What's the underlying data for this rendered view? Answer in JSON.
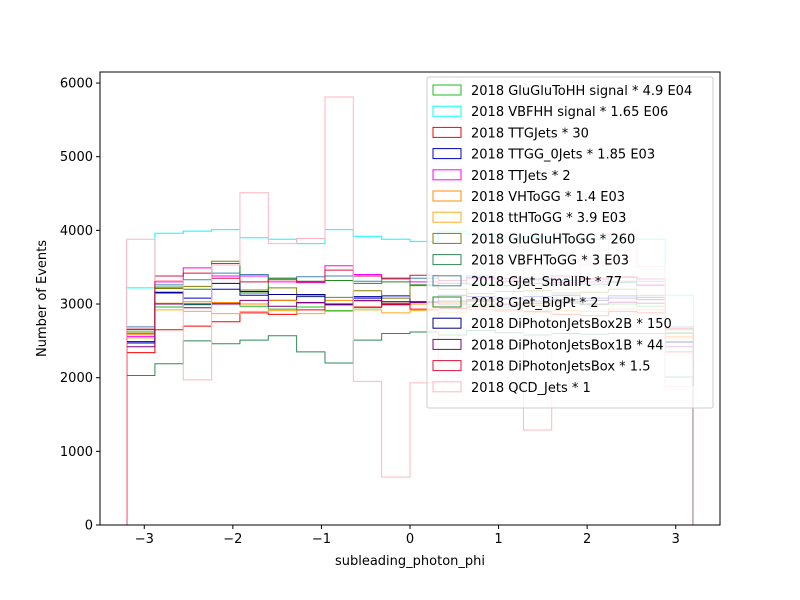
{
  "chart_data": {
    "type": "step-histogram",
    "title": "",
    "xlabel": "subleading_photon_phi",
    "ylabel": "Number of Events",
    "xlim": [
      -3.5,
      3.5
    ],
    "ylim": [
      0,
      6150
    ],
    "xticks": [
      -3,
      -2,
      -1,
      0,
      1,
      2,
      3
    ],
    "xtick_labels": [
      "−3",
      "−2",
      "−1",
      "0",
      "1",
      "2",
      "3"
    ],
    "yticks": [
      0,
      1000,
      2000,
      3000,
      4000,
      5000,
      6000
    ],
    "ytick_labels": [
      "0",
      "1000",
      "2000",
      "3000",
      "4000",
      "5000",
      "6000"
    ],
    "grid": false,
    "legend_position": "top-right",
    "bin_edges": [
      -3.2,
      -2.88,
      -2.56,
      -2.24,
      -1.92,
      -1.6,
      -1.28,
      -0.96,
      -0.64,
      -0.32,
      0.0,
      0.32,
      0.64,
      0.96,
      1.28,
      1.6,
      1.92,
      2.24,
      2.56,
      2.88,
      3.2
    ],
    "series": [
      {
        "name": "2018 GluGluToHH signal * 4.9 E04",
        "color": "#22bb22",
        "values": [
          2600,
          2960,
          2990,
          3010,
          2970,
          2930,
          2960,
          2910,
          2950,
          2990,
          3000,
          3020,
          2990,
          2960,
          2980,
          3010,
          2990,
          3000,
          2970,
          2610
        ]
      },
      {
        "name": "2018 VBFHH signal * 1.65 E06",
        "color": "#00ffff",
        "values": [
          3220,
          3960,
          3990,
          4010,
          3900,
          3880,
          3820,
          4010,
          3920,
          3880,
          3850,
          3990,
          3950,
          3900,
          3920,
          3900,
          3880,
          3880,
          3880,
          3120
        ]
      },
      {
        "name": "2018 TTGJets * 30",
        "color": "#ff0000",
        "values": [
          2340,
          2650,
          2700,
          2760,
          2880,
          2860,
          2920,
          3000,
          2960,
          2990,
          2930,
          2940,
          2960,
          2920,
          2900,
          2860,
          2840,
          2900,
          2880,
          2350
        ]
      },
      {
        "name": "2018 TTGG_0Jets * 1.85 E03",
        "color": "#0000cc",
        "values": [
          2470,
          3150,
          3080,
          3200,
          3120,
          3050,
          3100,
          2990,
          3080,
          3110,
          3020,
          3120,
          3100,
          3080,
          3100,
          3120,
          3080,
          3110,
          3090,
          2480
        ]
      },
      {
        "name": "2018 TTJets * 2",
        "color": "#ff00ff",
        "values": [
          2560,
          3300,
          3490,
          3380,
          3380,
          3300,
          3290,
          3520,
          3400,
          3350,
          3300,
          3280,
          3350,
          3310,
          3330,
          3290,
          3300,
          3310,
          3260,
          2560
        ]
      },
      {
        "name": "2018 VHToGG * 1.4 E03",
        "color": "#ff8c00",
        "values": [
          2590,
          3010,
          3030,
          3020,
          3000,
          3050,
          3010,
          3050,
          3040,
          3010,
          3000,
          3020,
          3050,
          3010,
          3000,
          3030,
          3000,
          3040,
          3010,
          2560
        ]
      },
      {
        "name": "2018 ttHToGG * 3.9 E03",
        "color": "#ffaa22",
        "values": [
          2540,
          2920,
          2900,
          2870,
          2900,
          2910,
          2870,
          2900,
          2920,
          2880,
          2910,
          2890,
          2930,
          2900,
          2880,
          2910,
          2900,
          2930,
          2920,
          2540
        ]
      },
      {
        "name": "2018 GluGluHToGG * 260",
        "color": "#808000",
        "values": [
          2620,
          3210,
          3240,
          3580,
          3190,
          3220,
          3110,
          3090,
          3180,
          3080,
          3250,
          3200,
          3140,
          3170,
          3180,
          3150,
          3160,
          3200,
          3120,
          2600
        ]
      },
      {
        "name": "2018 VBFHToGG * 3 E03",
        "color": "#2e8b57",
        "values": [
          2030,
          2190,
          2500,
          2460,
          2510,
          2570,
          2350,
          2200,
          2510,
          2600,
          2620,
          2580,
          2640,
          2610,
          2580,
          2600,
          2590,
          2600,
          2600,
          2010
        ]
      },
      {
        "name": "2018 GJet_SmallPt * 77",
        "color": "#4682b4",
        "values": [
          2690,
          3260,
          3330,
          3420,
          3400,
          3350,
          3370,
          3380,
          3310,
          3340,
          3350,
          3320,
          3380,
          3300,
          3350,
          3320,
          3330,
          3360,
          3310,
          2690
        ]
      },
      {
        "name": "2018 GJet_BigPt * 2",
        "color": "#228b22",
        "values": [
          2650,
          3230,
          3200,
          3550,
          3150,
          3350,
          3310,
          3320,
          3280,
          3300,
          3260,
          3280,
          3270,
          3250,
          3280,
          3260,
          3270,
          3290,
          3250,
          2650
        ]
      },
      {
        "name": "2018 DiPhotonJetsBox2B * 150",
        "color": "#00008b",
        "values": [
          2490,
          3160,
          3000,
          3280,
          3170,
          3130,
          3130,
          3000,
          3100,
          3030,
          3030,
          3040,
          3060,
          3070,
          3040,
          3060,
          3050,
          3080,
          3060,
          2490
        ]
      },
      {
        "name": "2018 DiPhotonJetsBox1B * 44",
        "color": "#800080",
        "values": [
          2420,
          3000,
          2950,
          3000,
          3050,
          2970,
          3020,
          2990,
          3050,
          3000,
          3020,
          3000,
          3040,
          2990,
          3010,
          3030,
          3000,
          3020,
          3010,
          2420
        ]
      },
      {
        "name": "2018 DiPhotonJetsBox * 1.5",
        "color": "#dc143c",
        "values": [
          2660,
          3380,
          3420,
          3350,
          3300,
          3330,
          3300,
          3460,
          3380,
          3350,
          3390,
          3320,
          3360,
          3350,
          3330,
          3380,
          3350,
          3370,
          3340,
          2670
        ]
      },
      {
        "name": "2018 QCD_Jets * 1",
        "color": "#ffb6c1",
        "values": [
          3880,
          3320,
          1970,
          3530,
          4510,
          3820,
          3890,
          5810,
          1950,
          650,
          1930,
          2980,
          2980,
          3780,
          1290,
          3200,
          3530,
          3950,
          3510,
          1880
        ]
      }
    ]
  }
}
